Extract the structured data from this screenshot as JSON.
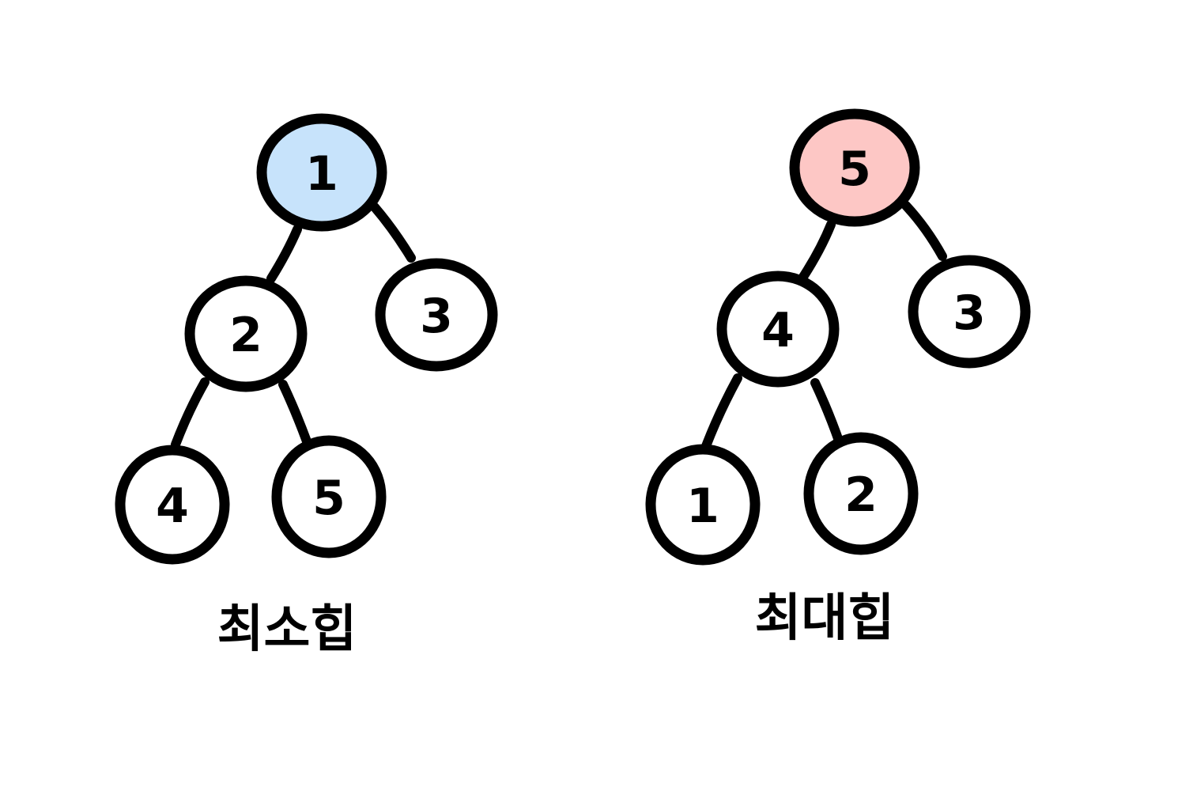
{
  "colors": {
    "stroke": "#000000",
    "default_fill": "#ffffff",
    "min_root_fill": "#c7e3fb",
    "max_root_fill": "#fdc7c5"
  },
  "trees": [
    {
      "id": "min-heap",
      "caption": "최소힙",
      "nodes": [
        {
          "key": "root",
          "label": "1",
          "highlight": "min_root_fill"
        },
        {
          "key": "left",
          "label": "2"
        },
        {
          "key": "right",
          "label": "3"
        },
        {
          "key": "left-left",
          "label": "4"
        },
        {
          "key": "left-right",
          "label": "5"
        }
      ],
      "edges": [
        [
          "root",
          "left"
        ],
        [
          "root",
          "right"
        ],
        [
          "left",
          "left-left"
        ],
        [
          "left",
          "left-right"
        ]
      ]
    },
    {
      "id": "max-heap",
      "caption": "최대힙",
      "nodes": [
        {
          "key": "root",
          "label": "5",
          "highlight": "max_root_fill"
        },
        {
          "key": "left",
          "label": "4"
        },
        {
          "key": "right",
          "label": "3"
        },
        {
          "key": "left-left",
          "label": "1"
        },
        {
          "key": "left-right",
          "label": "2"
        }
      ],
      "edges": [
        [
          "root",
          "left"
        ],
        [
          "root",
          "right"
        ],
        [
          "left",
          "left-left"
        ],
        [
          "left",
          "left-right"
        ]
      ]
    }
  ]
}
